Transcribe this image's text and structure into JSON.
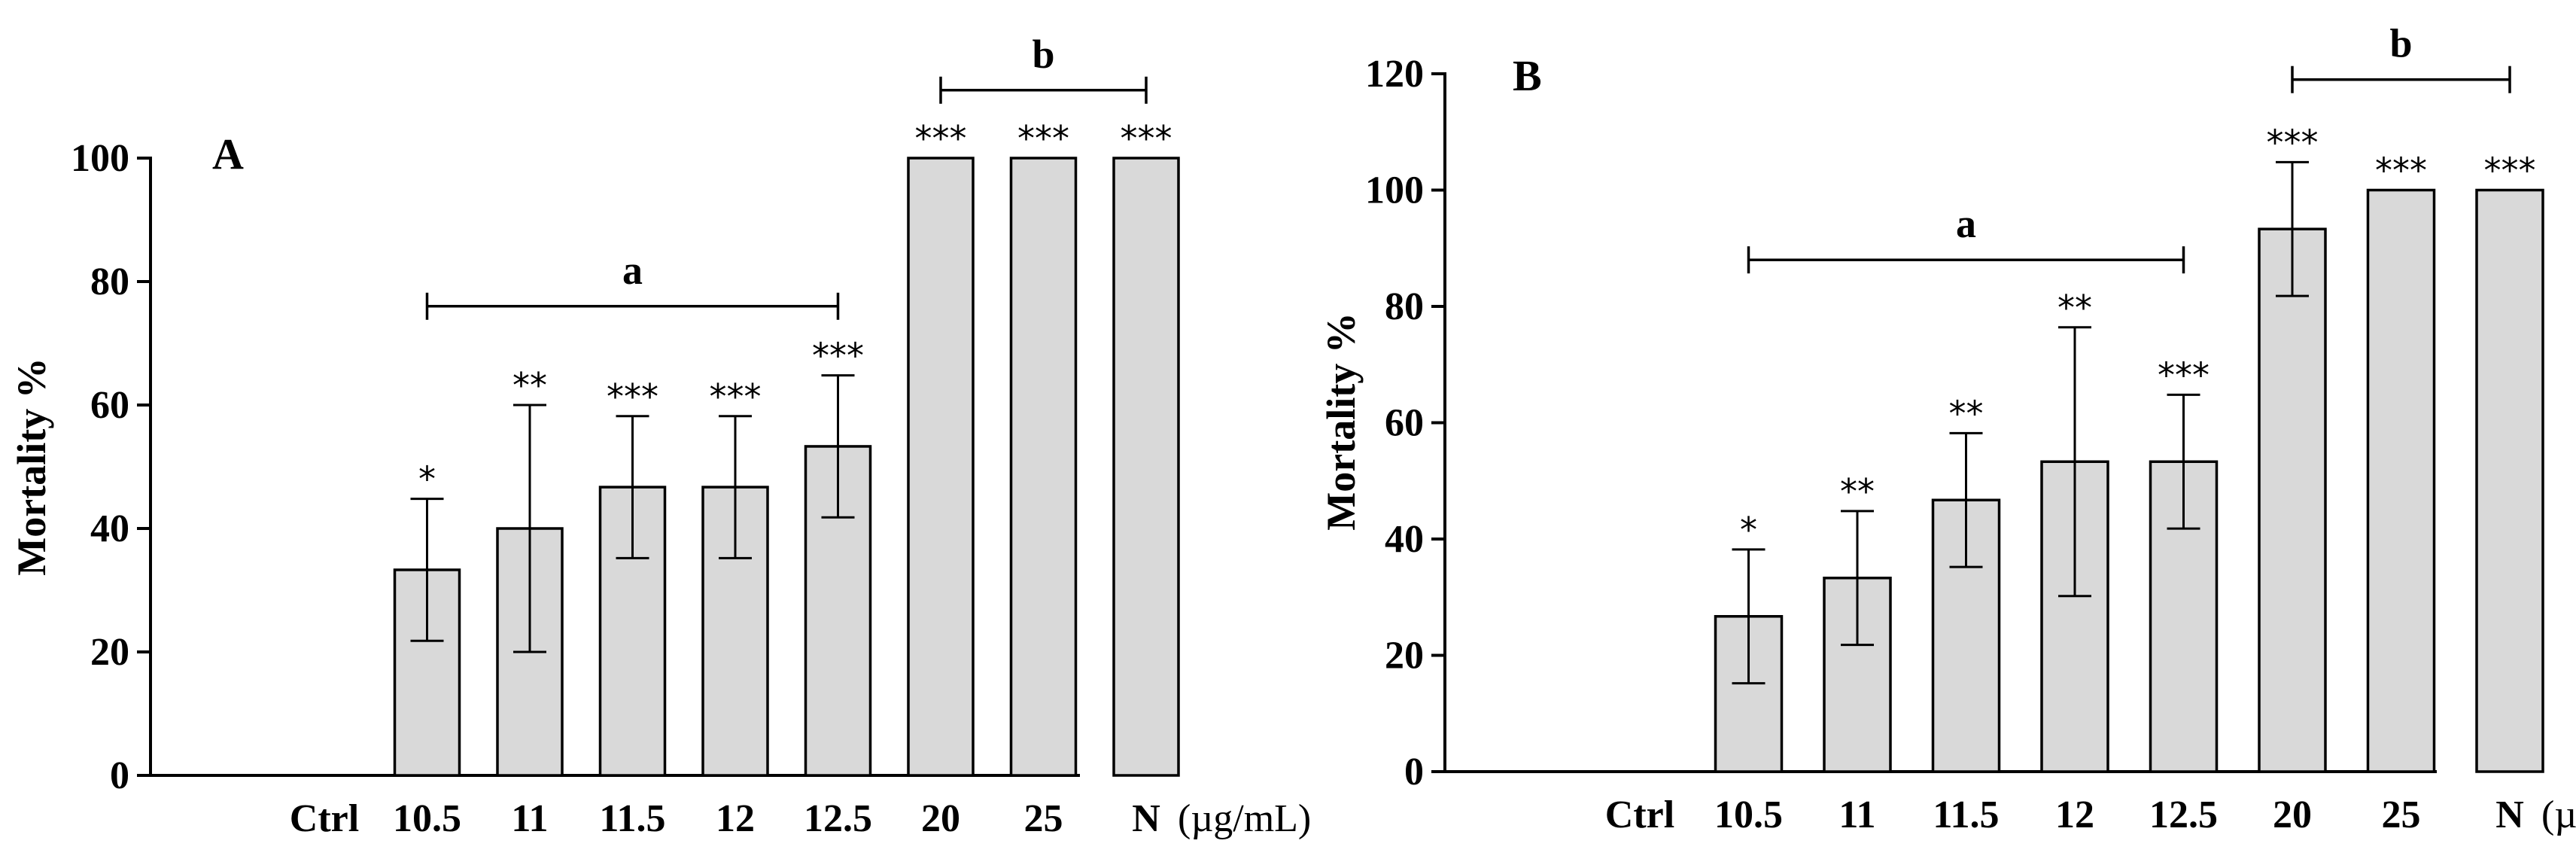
{
  "colors": {
    "bar_fill": "#d9d9d9",
    "stroke": "#000000"
  },
  "chart_data": [
    {
      "type": "bar",
      "panel": "A",
      "ylabel": "Mortality %",
      "xlabel": "",
      "ylim": [
        0,
        100
      ],
      "yticks": [
        "0",
        "20",
        "40",
        "60",
        "80",
        "100"
      ],
      "ytick_values": [
        0,
        20,
        40,
        60,
        80,
        100
      ],
      "categories": [
        "Ctrl",
        "10.5",
        "11",
        "11.5",
        "12",
        "12.5",
        "20",
        "25",
        "N"
      ],
      "unit": "(µg/mL)",
      "values": [
        0,
        33.3,
        40,
        46.7,
        46.7,
        53.3,
        100,
        100,
        100
      ],
      "errors": [
        0,
        11.5,
        20,
        11.5,
        11.5,
        11.5,
        0,
        0,
        0
      ],
      "significance": [
        "",
        "*",
        "**",
        "***",
        "***",
        "***",
        "***",
        "***",
        "***"
      ],
      "brackets": [
        {
          "label": "a",
          "from": 1,
          "to": 5,
          "y": 76
        },
        {
          "label": "b",
          "from": 6,
          "to": 8,
          "y": 111
        }
      ]
    },
    {
      "type": "bar",
      "panel": "B",
      "ylabel": "Mortality %",
      "xlabel": "",
      "ylim": [
        0,
        120
      ],
      "yticks": [
        "0",
        "20",
        "40",
        "60",
        "80",
        "100",
        "120"
      ],
      "ytick_values": [
        0,
        20,
        40,
        60,
        80,
        100,
        120
      ],
      "categories": [
        "Ctrl",
        "10.5",
        "11",
        "11.5",
        "12",
        "12.5",
        "20",
        "25",
        "N"
      ],
      "unit": "(µg/mL)",
      "values": [
        0,
        26.7,
        33.3,
        46.7,
        53.3,
        53.3,
        93.3,
        100,
        100
      ],
      "errors": [
        0,
        11.5,
        11.5,
        11.5,
        23.1,
        11.5,
        11.5,
        0,
        0
      ],
      "significance": [
        "",
        "*",
        "**",
        "**",
        "**",
        "***",
        "***",
        "***",
        "***"
      ],
      "brackets": [
        {
          "label": "a",
          "from": 1,
          "to": 5,
          "y": 88
        },
        {
          "label": "b",
          "from": 6,
          "to": 8,
          "y": 119
        }
      ]
    }
  ]
}
